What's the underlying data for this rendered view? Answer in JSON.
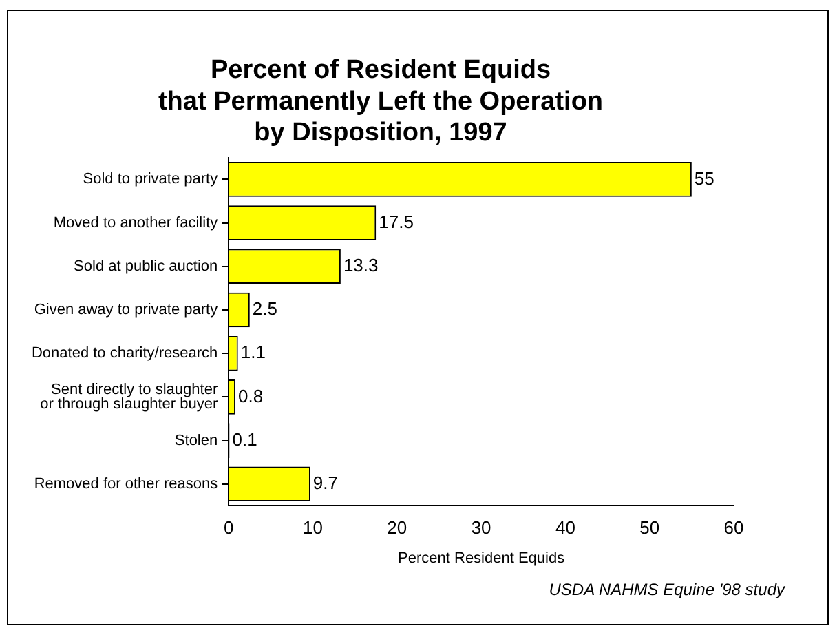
{
  "chart_data": {
    "type": "bar",
    "orientation": "horizontal",
    "title": "Percent of Resident Equids\nthat Permanently Left the Operation\nby Disposition, 1997",
    "categories": [
      "Sold to private party",
      "Moved to another facility",
      "Sold at public auction",
      "Given away to private party",
      "Donated to charity/research",
      "Sent directly to slaughter\nor through slaughter buyer",
      "Stolen",
      "Removed for other reasons"
    ],
    "values": [
      55,
      17.5,
      13.3,
      2.5,
      1.1,
      0.8,
      0.1,
      9.7
    ],
    "color": "#ffff00",
    "xlabel": "Percent Resident Equids",
    "xlim": [
      0,
      60
    ],
    "xticks": [
      0,
      10,
      20,
      30,
      40,
      50,
      60
    ],
    "data_labels": true,
    "grid": false,
    "legend": false,
    "annotations": [
      "USDA NAHMS Equine '98 study"
    ]
  }
}
